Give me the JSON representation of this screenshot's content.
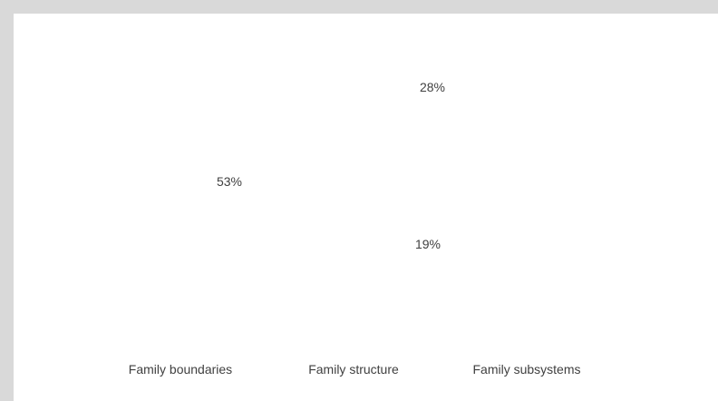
{
  "chart_data": {
    "type": "pie",
    "title": "",
    "categories": [
      "Family boundaries",
      "Family structure",
      "Family subsystems"
    ],
    "values": [
      53,
      19,
      28
    ],
    "value_labels": [
      "53%",
      "19%",
      "28%"
    ],
    "legend": "bottom"
  }
}
